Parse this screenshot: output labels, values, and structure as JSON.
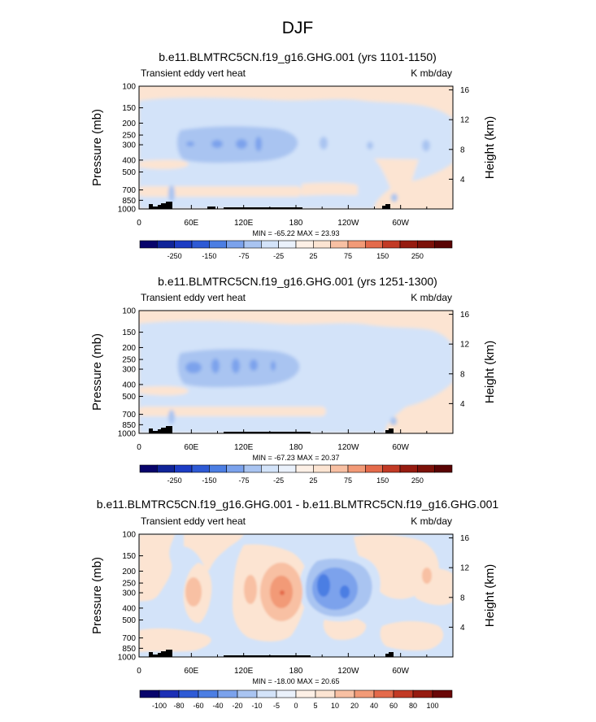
{
  "figure": {
    "title": "DJF"
  },
  "colors": {
    "div12": [
      "#08046b",
      "#1c2fb5",
      "#2e5ad5",
      "#4c7ee3",
      "#7ba2ec",
      "#a9c4f1",
      "#d3e3f9",
      "#fce4d2",
      "#f8c0a3",
      "#f29a77",
      "#e46a4b",
      "#c23a25",
      "#961b10",
      "#6a0707"
    ],
    "div13_pos": [
      "#fce4d2",
      "#f8c0a3",
      "#f29a77",
      "#e46a4b",
      "#c23a25",
      "#961b10",
      "#6a0707",
      "#4a0404"
    ]
  },
  "chart_data": [
    {
      "type": "heatmap",
      "title": "b.e11.BLMTRC5CN.f19_g16.GHG.001 (yrs 1101-1150)",
      "left_string": "Transient eddy vert heat",
      "right_string": "K mb/day",
      "ylabel": "Pressure (mb)",
      "ylabel_right": "Height (km)",
      "x_ticks": [
        "0",
        "60E",
        "120E",
        "180",
        "120W",
        "60W"
      ],
      "x_tick_lons": [
        0,
        60,
        120,
        180,
        240,
        300
      ],
      "x_range": [
        0,
        360
      ],
      "y_ticks": [
        "100",
        "150",
        "200",
        "250",
        "300",
        "400",
        "500",
        "700",
        "850",
        "1000"
      ],
      "y_tick_values": [
        100,
        150,
        200,
        250,
        300,
        400,
        500,
        700,
        850,
        1000
      ],
      "y_range": [
        100,
        1000
      ],
      "y_scale": "log",
      "height_ticks": [
        "4",
        "8",
        "12",
        "16"
      ],
      "height_tick_values": [
        4,
        8,
        12,
        16
      ],
      "summary": "MIN = -65.22  MAX =  23.93",
      "contour_levels": [
        -250,
        -150,
        -75,
        -25,
        25,
        75,
        150,
        250
      ],
      "levels": [
        "-250",
        "-150",
        "-75",
        "-25",
        "25",
        "75",
        "150",
        "250"
      ],
      "label_slots": [
        1,
        3,
        5,
        7,
        9,
        11,
        13,
        15
      ],
      "num_colors": 18
    },
    {
      "type": "heatmap",
      "title": "b.e11.BLMTRC5CN.f19_g16.GHG.001 (yrs 1251-1300)",
      "left_string": "Transient eddy vert heat",
      "right_string": "K mb/day",
      "ylabel": "Pressure (mb)",
      "ylabel_right": "Height (km)",
      "x_ticks": [
        "0",
        "60E",
        "120E",
        "180",
        "120W",
        "60W"
      ],
      "x_tick_lons": [
        0,
        60,
        120,
        180,
        240,
        300
      ],
      "x_range": [
        0,
        360
      ],
      "y_ticks": [
        "100",
        "150",
        "200",
        "250",
        "300",
        "400",
        "500",
        "700",
        "850",
        "1000"
      ],
      "y_tick_values": [
        100,
        150,
        200,
        250,
        300,
        400,
        500,
        700,
        850,
        1000
      ],
      "y_range": [
        100,
        1000
      ],
      "y_scale": "log",
      "height_ticks": [
        "4",
        "8",
        "12",
        "16"
      ],
      "height_tick_values": [
        4,
        8,
        12,
        16
      ],
      "summary": "MIN = -67.23  MAX =  20.37",
      "levels": [
        "-250",
        "-150",
        "-75",
        "-25",
        "25",
        "75",
        "150",
        "250"
      ],
      "label_slots": [
        1,
        3,
        5,
        7,
        9,
        11,
        13,
        15
      ],
      "num_colors": 18
    },
    {
      "type": "heatmap",
      "title": "b.e11.BLMTRC5CN.f19_g16.GHG.001 - b.e11.BLMTRC5CN.f19_g16.GHG.001",
      "left_string": "Transient eddy vert heat",
      "right_string": "K mb/day",
      "ylabel": "Pressure (mb)",
      "ylabel_right": "Height (km)",
      "x_ticks": [
        "0",
        "60E",
        "120E",
        "180",
        "120W",
        "60W"
      ],
      "x_tick_lons": [
        0,
        60,
        120,
        180,
        240,
        300
      ],
      "x_range": [
        0,
        360
      ],
      "y_ticks": [
        "100",
        "150",
        "200",
        "250",
        "300",
        "400",
        "500",
        "700",
        "850",
        "1000"
      ],
      "y_tick_values": [
        100,
        150,
        200,
        250,
        300,
        400,
        500,
        700,
        850,
        1000
      ],
      "y_range": [
        100,
        1000
      ],
      "y_scale": "log",
      "height_ticks": [
        "4",
        "8",
        "12",
        "16"
      ],
      "height_tick_values": [
        4,
        8,
        12,
        16
      ],
      "summary": "MIN = -18.00  MAX =  20.65",
      "levels": [
        "-100",
        "-80",
        "-60",
        "-40",
        "-20",
        "-10",
        "-5",
        "0",
        "5",
        "10",
        "20",
        "40",
        "60",
        "80",
        "100"
      ],
      "label_slots": [
        1,
        2,
        3,
        4,
        5,
        6,
        7,
        8,
        9,
        10,
        11,
        12,
        13,
        14,
        15
      ],
      "num_colors": 16
    }
  ]
}
